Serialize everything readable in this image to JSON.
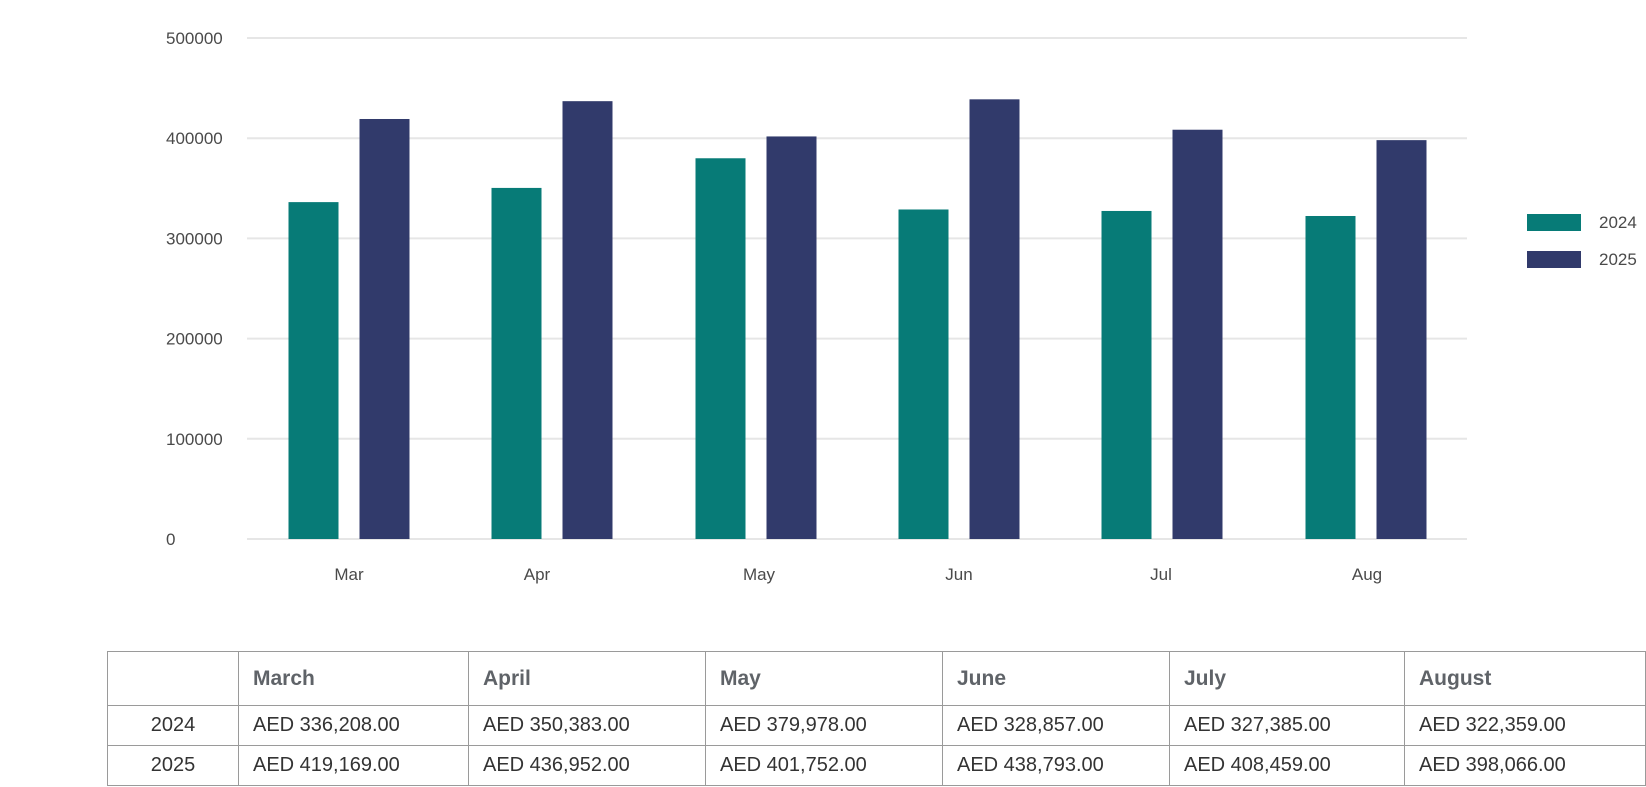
{
  "chart_data": {
    "type": "bar",
    "categories": [
      "Mar",
      "Apr",
      "May",
      "Jun",
      "Jul",
      "Aug"
    ],
    "series": [
      {
        "name": "2024",
        "color": "#077b77",
        "values": [
          336208,
          350383,
          379978,
          328857,
          327385,
          322359
        ]
      },
      {
        "name": "2025",
        "color": "#313a6b",
        "values": [
          419169,
          436952,
          401752,
          438793,
          408459,
          398066
        ]
      }
    ],
    "ylim": [
      0,
      500000
    ],
    "yticks": [
      "0",
      "100000",
      "200000",
      "300000",
      "400000",
      "500000"
    ],
    "grid": true,
    "legend_position": "right",
    "title": "",
    "xlabel": "",
    "ylabel": ""
  },
  "table": {
    "headers": [
      "",
      "March",
      "April",
      "May",
      "June",
      "July",
      "August"
    ],
    "rows": [
      {
        "label": "2024",
        "cells": [
          "AED 336,208.00",
          "AED 350,383.00",
          "AED 379,978.00",
          "AED 328,857.00",
          "AED 327,385.00",
          "AED 322,359.00"
        ]
      },
      {
        "label": "2025",
        "cells": [
          "AED 419,169.00",
          "AED 436,952.00",
          "AED 401,752.00",
          "AED 438,793.00",
          "AED 408,459.00",
          "AED 398,066.00"
        ]
      }
    ]
  }
}
